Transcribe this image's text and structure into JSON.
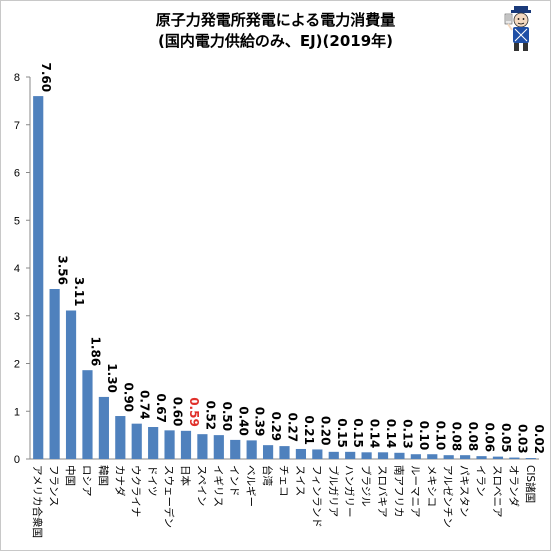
{
  "chart_data": {
    "type": "bar",
    "title": "原子力発電所発電による電力消費量",
    "subtitle": "(国内電力供給のみ、EJ)(2019年)",
    "xlabel": "",
    "ylabel": "",
    "ylim": [
      0,
      8
    ],
    "yticks": [
      "0",
      "1",
      "2",
      "3",
      "4",
      "5",
      "6",
      "7",
      "8"
    ],
    "grid": false,
    "legend": "none",
    "bar_color": "#4f81bd",
    "label_color": "#000000",
    "highlight_color": "#e0302a",
    "highlight_category": "日本",
    "categories": [
      "アメリカ合衆国",
      "フランス",
      "中国",
      "ロシア",
      "韓国",
      "カナダ",
      "ウクライナ",
      "ドイツ",
      "スウェーデン",
      "日本",
      "スペイン",
      "イギリス",
      "インド",
      "ベルギー",
      "台湾",
      "チェコ",
      "スイス",
      "フィンランド",
      "ブルガリア",
      "ハンガリー",
      "ブラジル",
      "スロバキア",
      "南アフリカ",
      "ルーマニア",
      "メキシコ",
      "アルゼンチン",
      "パキスタン",
      "イラン",
      "スロベニア",
      "オランダ",
      "CIS諸国"
    ],
    "values": [
      7.6,
      3.56,
      3.11,
      1.86,
      1.3,
      0.9,
      0.74,
      0.67,
      0.6,
      0.59,
      0.52,
      0.5,
      0.4,
      0.39,
      0.29,
      0.27,
      0.21,
      0.2,
      0.15,
      0.15,
      0.14,
      0.14,
      0.13,
      0.1,
      0.1,
      0.08,
      0.08,
      0.06,
      0.05,
      0.03,
      0.02
    ],
    "value_labels": [
      "7.60",
      "3.56",
      "3.11",
      "1.86",
      "1.30",
      "0.90",
      "0.74",
      "0.67",
      "0.60",
      "0.59",
      "0.52",
      "0.50",
      "0.40",
      "0.39",
      "0.29",
      "0.27",
      "0.21",
      "0.20",
      "0.15",
      "0.15",
      "0.14",
      "0.14",
      "0.13",
      "0.10",
      "0.10",
      "0.08",
      "0.08",
      "0.06",
      "0.05",
      "0.03",
      "0.02"
    ]
  }
}
